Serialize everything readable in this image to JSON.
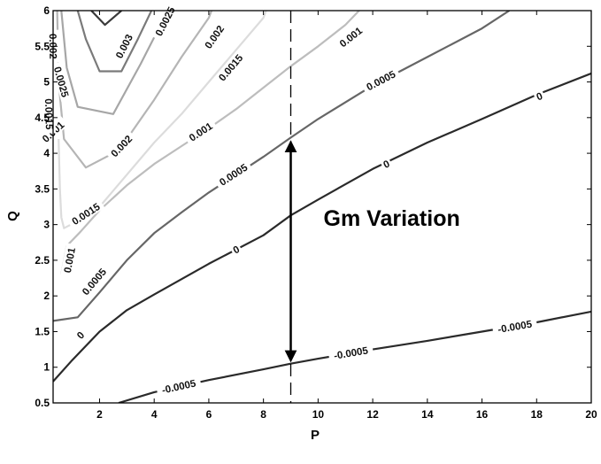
{
  "chart_data": {
    "type": "contour",
    "title": "",
    "xlabel": "P",
    "ylabel": "Q",
    "xlim": [
      0.3,
      20
    ],
    "ylim": [
      0.5,
      6
    ],
    "xticks": [
      2,
      4,
      6,
      8,
      10,
      12,
      14,
      16,
      18,
      20
    ],
    "xtick_labels": [
      "2",
      "4",
      "6",
      "8",
      "10",
      "12",
      "14",
      "16",
      "18",
      "20"
    ],
    "yticks": [
      0.5,
      1,
      1.5,
      2,
      2.5,
      3,
      3.5,
      4,
      4.5,
      5,
      5.5,
      6
    ],
    "ytick_labels": [
      "0.5",
      "1",
      "1.5",
      "2",
      "2.5",
      "3",
      "3.5",
      "4",
      "4.5",
      "5",
      "5.5",
      "6"
    ],
    "grid": false,
    "contours": [
      {
        "level": "-0.0005",
        "color": "#2a2a2a",
        "points": [
          [
            2.7,
            0.5
          ],
          [
            4,
            0.65
          ],
          [
            6,
            0.82
          ],
          [
            8,
            0.97
          ],
          [
            9,
            1.05
          ],
          [
            10,
            1.12
          ],
          [
            12,
            1.25
          ],
          [
            14,
            1.37
          ],
          [
            16,
            1.5
          ],
          [
            18,
            1.63
          ],
          [
            20,
            1.78
          ]
        ],
        "labels": [
          [
            4.9,
            0.73
          ],
          [
            11.2,
            1.2
          ],
          [
            17.2,
            1.57
          ]
        ]
      },
      {
        "level": "0",
        "color": "#2a2a2a",
        "points": [
          [
            0.3,
            0.8
          ],
          [
            1,
            1.1
          ],
          [
            2,
            1.5
          ],
          [
            3,
            1.8
          ],
          [
            4,
            2.02
          ],
          [
            6,
            2.45
          ],
          [
            8,
            2.85
          ],
          [
            9,
            3.13
          ],
          [
            10,
            3.35
          ],
          [
            12,
            3.78
          ],
          [
            14,
            4.15
          ],
          [
            16,
            4.48
          ],
          [
            18,
            4.82
          ],
          [
            20,
            5.12
          ]
        ],
        "labels": [
          [
            1.3,
            1.45
          ],
          [
            7,
            2.65
          ],
          [
            12.5,
            3.85
          ],
          [
            18.1,
            4.8
          ]
        ]
      },
      {
        "level": "0.0005",
        "color": "#666666",
        "points": [
          [
            0.3,
            1.65
          ],
          [
            1.2,
            1.7
          ],
          [
            2,
            2.05
          ],
          [
            3,
            2.5
          ],
          [
            4,
            2.88
          ],
          [
            5,
            3.17
          ],
          [
            6,
            3.45
          ],
          [
            7,
            3.7
          ],
          [
            8,
            3.95
          ],
          [
            9,
            4.22
          ],
          [
            10,
            4.48
          ],
          [
            12,
            4.95
          ],
          [
            14,
            5.35
          ],
          [
            16,
            5.75
          ],
          [
            17,
            6
          ]
        ],
        "labels": [
          [
            1.8,
            2.2
          ],
          [
            6.9,
            3.7
          ],
          [
            12.3,
            5.02
          ]
        ]
      },
      {
        "level": "0.001",
        "color": "#bdbdbd",
        "points": [
          [
            0.6,
            2.3
          ],
          [
            0.8,
            2.7
          ],
          [
            1.3,
            2.9
          ],
          [
            2,
            3.2
          ],
          [
            3,
            3.55
          ],
          [
            4,
            3.85
          ],
          [
            5,
            4.1
          ],
          [
            6,
            4.35
          ],
          [
            7,
            4.62
          ],
          [
            8,
            4.92
          ],
          [
            9,
            5.22
          ],
          [
            10,
            5.5
          ],
          [
            11,
            5.8
          ],
          [
            11.5,
            6
          ]
        ],
        "labels": [
          [
            0.3,
            4.3
          ],
          [
            0.9,
            2.5
          ],
          [
            5.7,
            4.3
          ],
          [
            11.2,
            5.63
          ]
        ]
      },
      {
        "level": "0.0015",
        "color": "#dcdcdc",
        "points": [
          [
            0.5,
            4.2
          ],
          [
            0.55,
            3.5
          ],
          [
            0.6,
            3.1
          ],
          [
            0.7,
            2.95
          ],
          [
            1.2,
            3.05
          ],
          [
            2,
            3.25
          ],
          [
            3,
            3.7
          ],
          [
            4,
            4.15
          ],
          [
            5,
            4.55
          ],
          [
            6,
            5.0
          ],
          [
            7,
            5.45
          ],
          [
            8,
            5.9
          ],
          [
            8.1,
            6
          ]
        ],
        "labels": [
          [
            0.15,
            4.55
          ],
          [
            1.5,
            3.15
          ],
          [
            6.8,
            5.2
          ]
        ]
      },
      {
        "level": "0.002",
        "color": "#b5b5b5",
        "points": [
          [
            0.45,
            6
          ],
          [
            0.5,
            5
          ],
          [
            0.7,
            4.2
          ],
          [
            1.5,
            3.8
          ],
          [
            2.5,
            4.0
          ],
          [
            3,
            4.2
          ],
          [
            4,
            4.75
          ],
          [
            5,
            5.35
          ],
          [
            6,
            5.9
          ],
          [
            6.1,
            6
          ]
        ],
        "labels": [
          [
            0.3,
            5.5
          ],
          [
            2.8,
            4.1
          ],
          [
            6.2,
            5.63
          ]
        ]
      },
      {
        "level": "0.0025",
        "color": "#a6a6a6",
        "points": [
          [
            0.6,
            6
          ],
          [
            0.8,
            5.2
          ],
          [
            1.2,
            4.65
          ],
          [
            2.5,
            4.55
          ],
          [
            3.5,
            5.25
          ],
          [
            4.5,
            6
          ]
        ],
        "labels": [
          [
            0.6,
            5.0
          ],
          [
            4.4,
            5.85
          ]
        ]
      },
      {
        "level": "0.003",
        "color": "#7a7a7a",
        "points": [
          [
            1.2,
            6
          ],
          [
            1.5,
            5.6
          ],
          [
            2.0,
            5.15
          ],
          [
            2.8,
            5.15
          ],
          [
            3.4,
            5.6
          ],
          [
            3.9,
            6
          ]
        ],
        "labels": [
          [
            2.9,
            5.5
          ]
        ]
      },
      {
        "level": "",
        "color": "#3a3a3a",
        "points": [
          [
            1.7,
            6
          ],
          [
            2.2,
            5.8
          ],
          [
            2.8,
            6
          ]
        ],
        "labels": []
      }
    ],
    "annotations": [
      {
        "type": "vline",
        "x": 9,
        "style": "dashed"
      },
      {
        "type": "double_arrow",
        "x": 9,
        "y_from": 1.1,
        "y_to": 4.15
      },
      {
        "type": "text",
        "text": "Gm Variation",
        "x": 10.2,
        "y": 2.98
      }
    ]
  }
}
